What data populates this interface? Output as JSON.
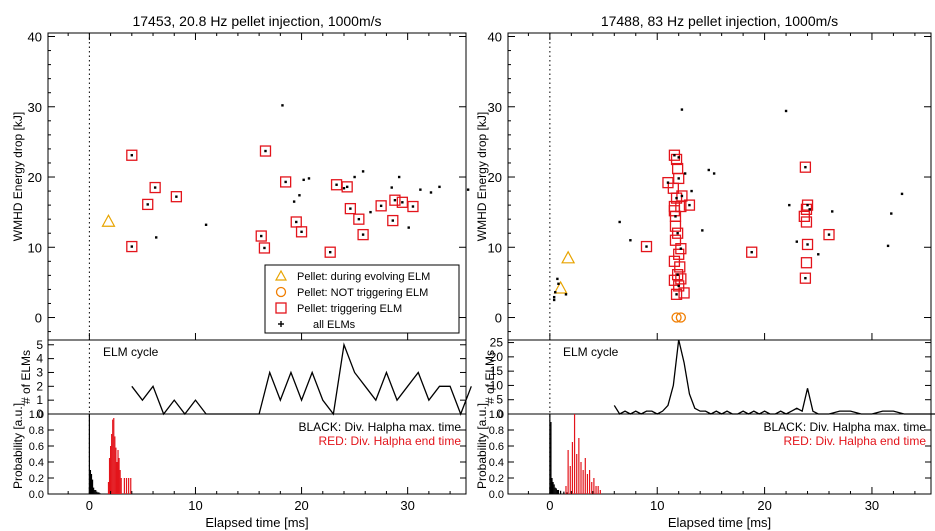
{
  "chart_data": [
    {
      "type": "scatter",
      "title": "17453, 20.8 Hz pellet injection, 1000m/s",
      "xlabel": "Elapsed time [ms]",
      "ylabel": "WMHD Energy drop [kJ]",
      "xlim": [
        -4,
        36
      ],
      "ylim": [
        -3,
        40
      ],
      "xticks": [
        0,
        10,
        20,
        30
      ],
      "yticks": [
        0,
        10,
        20,
        30,
        40
      ],
      "legend": {
        "placement": "bottom-right",
        "entries": [
          {
            "label": "Pellet: during evolving ELM",
            "marker": "triangle",
            "color": "#e8a400"
          },
          {
            "label": "Pellet: NOT triggering ELM",
            "marker": "circle",
            "color": "#f07d00"
          },
          {
            "label": "Pellet: triggering ELM",
            "marker": "square",
            "color": "#e3141b"
          },
          {
            "label": "all ELMs",
            "marker": "plus",
            "color": "#000000"
          }
        ]
      },
      "series": [
        {
          "marker": "triangle",
          "color": "#e8a400",
          "points": [
            [
              1.8,
              13.7
            ]
          ]
        },
        {
          "marker": "circle",
          "color": "#f07d00",
          "points": []
        },
        {
          "marker": "square",
          "color": "#e3141b",
          "points": [
            [
              5.5,
              16.1
            ],
            [
              6.2,
              18.5
            ],
            [
              8.2,
              17.2
            ],
            [
              16.2,
              11.6
            ],
            [
              16.5,
              9.9
            ],
            [
              16.6,
              23.7
            ],
            [
              18.5,
              19.3
            ],
            [
              19.5,
              13.6
            ],
            [
              20.0,
              12.2
            ],
            [
              22.7,
              9.3
            ],
            [
              23.3,
              18.9
            ],
            [
              24.3,
              18.6
            ],
            [
              24.6,
              15.5
            ],
            [
              25.4,
              14.0
            ],
            [
              25.8,
              11.8
            ],
            [
              27.5,
              15.9
            ],
            [
              28.6,
              13.8
            ],
            [
              28.8,
              16.7
            ],
            [
              29.5,
              16.4
            ],
            [
              30.5,
              15.8
            ],
            [
              4.0,
              23.1
            ],
            [
              4.0,
              10.1
            ]
          ]
        },
        {
          "marker": "dot",
          "color": "#000000",
          "points": [
            [
              4.0,
              23.1
            ],
            [
              4.0,
              10.1
            ],
            [
              5.5,
              16.1
            ],
            [
              6.2,
              18.5
            ],
            [
              6.3,
              11.4
            ],
            [
              8.2,
              17.2
            ],
            [
              11.0,
              13.2
            ],
            [
              16.2,
              11.6
            ],
            [
              16.5,
              9.9
            ],
            [
              16.6,
              23.7
            ],
            [
              18.2,
              30.2
            ],
            [
              18.5,
              19.3
            ],
            [
              19.5,
              13.6
            ],
            [
              20.0,
              12.2
            ],
            [
              19.3,
              16.5
            ],
            [
              19.8,
              17.4
            ],
            [
              20.2,
              19.6
            ],
            [
              20.7,
              19.8
            ],
            [
              22.7,
              9.3
            ],
            [
              23.3,
              18.9
            ],
            [
              24.0,
              18.4
            ],
            [
              24.3,
              18.6
            ],
            [
              24.6,
              15.5
            ],
            [
              25.0,
              20.0
            ],
            [
              25.4,
              14.0
            ],
            [
              25.8,
              20.8
            ],
            [
              25.8,
              11.8
            ],
            [
              26.5,
              15.0
            ],
            [
              27.5,
              15.9
            ],
            [
              28.5,
              18.5
            ],
            [
              28.6,
              13.8
            ],
            [
              28.8,
              16.7
            ],
            [
              29.2,
              20.0
            ],
            [
              29.5,
              16.4
            ],
            [
              30.1,
              12.8
            ],
            [
              30.5,
              15.8
            ],
            [
              31.2,
              18.2
            ],
            [
              32.2,
              17.8
            ],
            [
              33.0,
              18.6
            ],
            [
              35.7,
              18.2
            ]
          ]
        }
      ]
    },
    {
      "type": "line",
      "panel_label": "ELM cycle",
      "ylabel": "# of ELMs",
      "ylim": [
        0,
        5
      ],
      "yticks": [
        0,
        1,
        2,
        3,
        4,
        5
      ],
      "xlim": [
        -4,
        36
      ],
      "series": [
        {
          "color": "#000000",
          "x": [
            4.0,
            5.0,
            6.0,
            7.0,
            8.0,
            9.0,
            10.0,
            11.0,
            12.0,
            13.0,
            14.0,
            15.0,
            16.0,
            17.0,
            18.0,
            19.0,
            20.0,
            21.0,
            22.0,
            23.0,
            24.0,
            25.0,
            26.0,
            27.0,
            28.0,
            29.0,
            30.0,
            31.0,
            32.0,
            33.0,
            34.0,
            35.0,
            36.0
          ],
          "y": [
            2,
            1,
            2,
            0,
            1,
            0,
            1,
            0,
            0,
            0,
            0,
            0,
            0,
            3,
            1,
            3,
            1,
            3,
            1,
            0,
            5,
            3,
            2,
            1,
            3,
            1,
            2,
            3,
            1,
            2,
            2,
            0,
            2
          ]
        }
      ]
    },
    {
      "type": "bar",
      "ylabel": "Probability [a.u.]",
      "ylim": [
        0,
        1.0
      ],
      "yticks": [
        "0.0",
        "0.2",
        "0.4",
        "0.6",
        "0.8",
        "1.0"
      ],
      "xlim": [
        -4,
        36
      ],
      "xticks": [
        0,
        10,
        20,
        30
      ],
      "xlabel": "Elapsed time [ms]",
      "annotations": [
        {
          "text": "BLACK: Div. Halpha max. time",
          "color": "#000000"
        },
        {
          "text": "RED: Div. Halpha end time",
          "color": "#e3141b"
        }
      ],
      "series": [
        {
          "color": "#000000",
          "x": [
            0.0,
            0.1,
            0.2,
            0.3,
            0.4,
            0.5,
            0.6,
            0.7,
            0.8,
            0.9,
            1.0
          ],
          "y": [
            1.0,
            0.3,
            0.25,
            0.18,
            0.08,
            0.05,
            0.05,
            0.03,
            0.02,
            0.02,
            0.01
          ]
        },
        {
          "color": "#e3141b",
          "x": [
            1.8,
            1.9,
            2.0,
            2.1,
            2.2,
            2.3,
            2.4,
            2.5,
            2.6,
            2.7,
            2.8,
            2.9,
            3.0,
            3.3,
            3.5,
            3.7,
            3.9
          ],
          "y": [
            0.15,
            0.45,
            0.6,
            0.75,
            0.93,
            0.95,
            0.72,
            0.58,
            0.4,
            0.55,
            0.45,
            0.3,
            0.2,
            0.2,
            0.2,
            0.2,
            0.2
          ]
        }
      ]
    },
    {
      "type": "scatter",
      "title": "17488, 83 Hz pellet injection, 1000m/s",
      "xlabel": "Elapsed time [ms]",
      "ylabel": "WMHD Energy drop [kJ]",
      "xlim": [
        -4,
        36
      ],
      "ylim": [
        -3,
        40
      ],
      "xticks": [
        0,
        10,
        20,
        30
      ],
      "yticks": [
        0,
        10,
        20,
        30,
        40
      ],
      "series": [
        {
          "marker": "triangle",
          "color": "#e8a400",
          "points": [
            [
              1.7,
              8.5
            ],
            [
              1.0,
              4.2
            ]
          ]
        },
        {
          "marker": "circle",
          "color": "#f07d00",
          "points": [
            [
              11.8,
              0.0
            ],
            [
              12.2,
              0.0
            ]
          ]
        },
        {
          "marker": "square",
          "color": "#e3141b",
          "points": [
            [
              11.0,
              19.2
            ],
            [
              11.6,
              23.1
            ],
            [
              11.8,
              22.5
            ],
            [
              11.9,
              21.2
            ],
            [
              12.0,
              19.8
            ],
            [
              11.5,
              18.4
            ],
            [
              11.8,
              17.0
            ],
            [
              11.6,
              15.8
            ],
            [
              12.3,
              17.3
            ],
            [
              12.2,
              15.8
            ],
            [
              11.6,
              15.2
            ],
            [
              11.7,
              14.4
            ],
            [
              11.7,
              13.0
            ],
            [
              11.9,
              12.0
            ],
            [
              11.7,
              11.0
            ],
            [
              12.2,
              9.8
            ],
            [
              12.0,
              9.0
            ],
            [
              11.6,
              8.0
            ],
            [
              12.1,
              7.2
            ],
            [
              11.9,
              6.1
            ],
            [
              11.6,
              5.3
            ],
            [
              12.2,
              5.5
            ],
            [
              12.0,
              4.5
            ],
            [
              11.8,
              3.3
            ],
            [
              12.5,
              3.5
            ],
            [
              13.0,
              16.0
            ],
            [
              9.0,
              10.1
            ],
            [
              18.8,
              9.3
            ],
            [
              23.8,
              21.4
            ],
            [
              24.0,
              16.0
            ],
            [
              23.9,
              15.4
            ],
            [
              23.7,
              14.4
            ],
            [
              23.9,
              13.6
            ],
            [
              24.0,
              10.4
            ],
            [
              23.9,
              7.8
            ],
            [
              23.8,
              5.6
            ],
            [
              26.0,
              11.8
            ]
          ]
        },
        {
          "marker": "dot",
          "color": "#000000",
          "points": [
            [
              0.5,
              3.6
            ],
            [
              0.8,
              4.8
            ],
            [
              0.7,
              5.5
            ],
            [
              0.4,
              2.5
            ],
            [
              0.4,
              2.9
            ],
            [
              1.5,
              3.3
            ],
            [
              6.5,
              13.6
            ],
            [
              7.5,
              11.0
            ],
            [
              9.0,
              10.1
            ],
            [
              11.0,
              19.2
            ],
            [
              11.6,
              23.1
            ],
            [
              12.0,
              22.8
            ],
            [
              12.3,
              29.6
            ],
            [
              12.0,
              19.8
            ],
            [
              12.6,
              20.5
            ],
            [
              11.8,
              17.0
            ],
            [
              12.3,
              17.3
            ],
            [
              11.7,
              14.4
            ],
            [
              11.9,
              12.0
            ],
            [
              12.2,
              9.8
            ],
            [
              11.9,
              6.1
            ],
            [
              12.0,
              4.5
            ],
            [
              11.8,
              3.3
            ],
            [
              13.0,
              16.0
            ],
            [
              13.2,
              18.0
            ],
            [
              14.2,
              12.4
            ],
            [
              14.8,
              21.0
            ],
            [
              15.3,
              20.5
            ],
            [
              18.8,
              9.3
            ],
            [
              22.0,
              29.4
            ],
            [
              23.0,
              10.8
            ],
            [
              23.8,
              21.4
            ],
            [
              24.0,
              16.0
            ],
            [
              24.2,
              15.4
            ],
            [
              24.0,
              10.4
            ],
            [
              23.8,
              5.6
            ],
            [
              25.0,
              9.0
            ],
            [
              26.0,
              11.8
            ],
            [
              26.3,
              15.1
            ],
            [
              31.5,
              10.2
            ],
            [
              31.8,
              14.8
            ],
            [
              32.8,
              17.6
            ],
            [
              22.3,
              16.0
            ]
          ]
        }
      ]
    },
    {
      "type": "line",
      "panel_label": "ELM cycle",
      "ylabel": "# of ELMs",
      "ylim": [
        0,
        25
      ],
      "yticks": [
        0,
        5,
        10,
        15,
        20,
        25
      ],
      "xlim": [
        -4,
        36
      ],
      "series": [
        {
          "color": "#000000",
          "x": [
            6.0,
            6.5,
            7.0,
            7.5,
            8.0,
            8.5,
            9.0,
            9.5,
            10.0,
            10.5,
            11.0,
            11.5,
            12.0,
            12.5,
            13.0,
            13.5,
            14.0,
            14.5,
            15.0,
            15.5,
            16.0,
            16.5,
            17.0,
            17.5,
            18.0,
            18.5,
            19.0,
            19.5,
            20.0,
            20.5,
            21.0,
            21.5,
            22.0,
            22.5,
            23.0,
            23.5,
            24.0,
            24.5,
            25.0,
            26.0,
            27.0,
            28.0,
            29.0,
            30.0,
            31.0,
            32.0,
            33.0,
            34.0,
            35.0,
            36.0
          ],
          "y": [
            3,
            0,
            1,
            0,
            1,
            0,
            1,
            1,
            0,
            1,
            3,
            10,
            26,
            18,
            7,
            2,
            1,
            1,
            0,
            1,
            0,
            1,
            0,
            0,
            1,
            0,
            1,
            0,
            1,
            0,
            0,
            1,
            0,
            1,
            2,
            1,
            9,
            1,
            0,
            0,
            1,
            1,
            0,
            0,
            1,
            1,
            0,
            0,
            0,
            0
          ]
        }
      ]
    },
    {
      "type": "bar",
      "ylabel": "Probability [a.u.]",
      "ylim": [
        0,
        1.0
      ],
      "yticks": [
        "0.0",
        "0.2",
        "0.4",
        "0.6",
        "0.8",
        "1.0"
      ],
      "xlim": [
        -4,
        36
      ],
      "xticks": [
        0,
        10,
        20,
        30
      ],
      "xlabel": "Elapsed time [ms]",
      "annotations": [
        {
          "text": "BLACK: Div. Halpha max. time",
          "color": "#000000"
        },
        {
          "text": "RED: Div. Halpha end time",
          "color": "#e3141b"
        }
      ],
      "series": [
        {
          "color": "#000000",
          "x": [
            0.0,
            0.1,
            0.2,
            0.3,
            0.4,
            0.5,
            0.6,
            0.7,
            0.8,
            1.0,
            1.3,
            1.6
          ],
          "y": [
            1.0,
            0.9,
            0.2,
            0.15,
            0.12,
            0.08,
            0.07,
            0.05,
            0.05,
            0.04,
            0.03,
            0.02
          ]
        },
        {
          "color": "#e3141b",
          "x": [
            1.5,
            1.7,
            1.9,
            2.1,
            2.3,
            2.5,
            2.7,
            2.9,
            3.1,
            3.3,
            3.5,
            3.7,
            3.9,
            4.1,
            4.3,
            4.5,
            4.7
          ],
          "y": [
            0.1,
            0.55,
            0.35,
            0.65,
            1.0,
            0.5,
            0.7,
            0.4,
            0.3,
            0.45,
            0.25,
            0.3,
            0.15,
            0.2,
            0.1,
            0.1,
            0.05
          ]
        }
      ]
    }
  ]
}
